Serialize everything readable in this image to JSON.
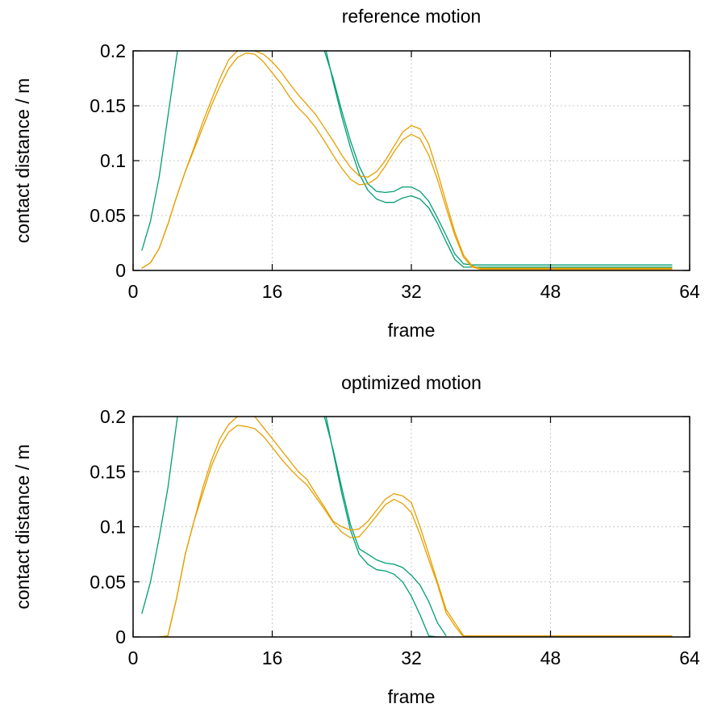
{
  "colors": {
    "green": "#009e73",
    "orange": "#e69f00"
  },
  "chart_data": [
    {
      "type": "line",
      "title": "reference motion",
      "xlabel": "frame",
      "ylabel": "contact distance / m",
      "xlim": [
        0,
        64
      ],
      "ylim": [
        0,
        0.2
      ],
      "xticks": [
        0,
        16,
        32,
        48,
        64
      ],
      "xtick_labels": [
        "0",
        "16",
        "32",
        "48",
        "64"
      ],
      "yticks": [
        0,
        0.05,
        0.1,
        0.15,
        0.2
      ],
      "ytick_labels": [
        "0",
        "0.05",
        "0.1",
        "0.15",
        "0.2"
      ],
      "grid": true,
      "series": [
        {
          "color": "green",
          "x": [
            1,
            2,
            3,
            4,
            5.1
          ],
          "y": [
            0.018,
            0.045,
            0.085,
            0.14,
            0.2
          ]
        },
        {
          "color": "green",
          "x": [
            22,
            23,
            24,
            25,
            26,
            27,
            28,
            29,
            30,
            31,
            32,
            33,
            34,
            35,
            36,
            37,
            38,
            39,
            40,
            62
          ],
          "y": [
            0.2,
            0.175,
            0.145,
            0.118,
            0.095,
            0.079,
            0.072,
            0.071,
            0.072,
            0.076,
            0.076,
            0.072,
            0.063,
            0.048,
            0.032,
            0.015,
            0.006,
            0.005,
            0.005,
            0.005
          ]
        },
        {
          "color": "green",
          "x": [
            22.2,
            23,
            24,
            25,
            26,
            27,
            28,
            29,
            30,
            31,
            32,
            33,
            34,
            35,
            36,
            37,
            38,
            39,
            40,
            62
          ],
          "y": [
            0.2,
            0.172,
            0.14,
            0.112,
            0.088,
            0.073,
            0.065,
            0.062,
            0.062,
            0.066,
            0.068,
            0.065,
            0.057,
            0.043,
            0.026,
            0.01,
            0.003,
            0.003,
            0.003,
            0.003
          ]
        },
        {
          "color": "orange",
          "x": [
            1,
            2,
            3,
            4,
            5,
            6,
            7,
            8,
            9,
            10,
            11,
            12,
            13,
            14,
            15,
            16,
            17,
            18,
            19,
            20,
            21,
            22,
            23,
            24,
            25,
            26,
            27,
            28,
            29,
            30,
            31,
            32,
            33,
            34,
            35,
            36,
            37,
            38,
            39,
            40,
            62
          ],
          "y": [
            0.002,
            0.007,
            0.02,
            0.042,
            0.067,
            0.09,
            0.112,
            0.135,
            0.155,
            0.175,
            0.192,
            0.2,
            0.201,
            0.2,
            0.197,
            0.19,
            0.181,
            0.17,
            0.16,
            0.151,
            0.142,
            0.13,
            0.118,
            0.105,
            0.094,
            0.086,
            0.085,
            0.09,
            0.1,
            0.113,
            0.126,
            0.132,
            0.129,
            0.115,
            0.09,
            0.062,
            0.035,
            0.014,
            0.004,
            0.002,
            0.002
          ]
        },
        {
          "color": "orange",
          "x": [
            1,
            2,
            3,
            4,
            5,
            6,
            7,
            8,
            9,
            10,
            11,
            12,
            13,
            14,
            15,
            16,
            17,
            18,
            19,
            20,
            21,
            22,
            23,
            24,
            25,
            26,
            27,
            28,
            29,
            30,
            31,
            32,
            33,
            34,
            35,
            36,
            37,
            38,
            39,
            40,
            62
          ],
          "y": [
            0.002,
            0.007,
            0.02,
            0.042,
            0.067,
            0.09,
            0.11,
            0.13,
            0.15,
            0.168,
            0.184,
            0.194,
            0.198,
            0.197,
            0.19,
            0.18,
            0.17,
            0.158,
            0.148,
            0.14,
            0.13,
            0.118,
            0.105,
            0.093,
            0.083,
            0.078,
            0.079,
            0.084,
            0.095,
            0.108,
            0.119,
            0.124,
            0.12,
            0.105,
            0.083,
            0.057,
            0.032,
            0.012,
            0.003,
            0.001,
            0.001
          ]
        }
      ]
    },
    {
      "type": "line",
      "title": "optimized motion",
      "xlabel": "frame",
      "ylabel": "contact distance / m",
      "xlim": [
        0,
        64
      ],
      "ylim": [
        0,
        0.2
      ],
      "xticks": [
        0,
        16,
        32,
        48,
        64
      ],
      "xtick_labels": [
        "0",
        "16",
        "32",
        "48",
        "64"
      ],
      "yticks": [
        0,
        0.05,
        0.1,
        0.15,
        0.2
      ],
      "ytick_labels": [
        "0",
        "0.05",
        "0.1",
        "0.15",
        "0.2"
      ],
      "grid": true,
      "series": [
        {
          "color": "green",
          "x": [
            1,
            2,
            3,
            4,
            5.1
          ],
          "y": [
            0.021,
            0.05,
            0.09,
            0.135,
            0.2
          ]
        },
        {
          "color": "green",
          "x": [
            22,
            23,
            24,
            25,
            26,
            27,
            28,
            29,
            30,
            31,
            32,
            33,
            34,
            35,
            36
          ],
          "y": [
            0.2,
            0.17,
            0.135,
            0.102,
            0.08,
            0.075,
            0.07,
            0.067,
            0.066,
            0.063,
            0.056,
            0.047,
            0.032,
            0.013,
            0.001
          ]
        },
        {
          "color": "green",
          "x": [
            22.2,
            23,
            24,
            25,
            26,
            27,
            28,
            29,
            30,
            31,
            32,
            33,
            34,
            35,
            36
          ],
          "y": [
            0.2,
            0.168,
            0.13,
            0.097,
            0.075,
            0.066,
            0.061,
            0.06,
            0.057,
            0.05,
            0.037,
            0.02,
            0.001,
            0,
            0
          ]
        },
        {
          "color": "green",
          "x": [
            38,
            62
          ],
          "y": [
            0.001,
            0.001
          ]
        },
        {
          "color": "orange",
          "x": [
            3,
            4,
            5,
            6,
            7,
            8,
            9,
            10,
            11,
            12,
            13,
            14,
            15,
            16,
            17,
            18,
            19,
            20,
            21,
            22,
            23,
            24,
            25,
            26,
            27,
            28,
            29,
            30,
            31,
            32,
            33,
            34,
            35,
            36,
            37,
            38,
            39,
            62
          ],
          "y": [
            0,
            0.001,
            0.035,
            0.075,
            0.105,
            0.135,
            0.16,
            0.18,
            0.193,
            0.2,
            0.201,
            0.2,
            0.19,
            0.18,
            0.17,
            0.16,
            0.15,
            0.143,
            0.13,
            0.118,
            0.105,
            0.1,
            0.097,
            0.098,
            0.105,
            0.115,
            0.125,
            0.13,
            0.128,
            0.122,
            0.1,
            0.075,
            0.05,
            0.025,
            0.013,
            0.001,
            0.001,
            0.001
          ]
        },
        {
          "color": "orange",
          "x": [
            3,
            4,
            5,
            6,
            7,
            8,
            9,
            10,
            11,
            12,
            13,
            14,
            15,
            16,
            17,
            18,
            19,
            20,
            21,
            22,
            23,
            24,
            25,
            26,
            27,
            28,
            29,
            30,
            31,
            32,
            33,
            34,
            35,
            36,
            37,
            38,
            39,
            62
          ],
          "y": [
            0,
            0.001,
            0.035,
            0.075,
            0.105,
            0.13,
            0.155,
            0.173,
            0.186,
            0.192,
            0.191,
            0.189,
            0.182,
            0.172,
            0.162,
            0.153,
            0.145,
            0.138,
            0.127,
            0.116,
            0.104,
            0.095,
            0.09,
            0.091,
            0.1,
            0.11,
            0.12,
            0.125,
            0.121,
            0.113,
            0.093,
            0.07,
            0.048,
            0.022,
            0.01,
            0,
            0,
            0
          ]
        }
      ]
    }
  ]
}
